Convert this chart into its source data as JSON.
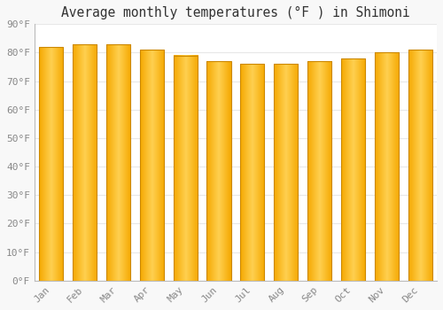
{
  "title": "Average monthly temperatures (°F ) in Shimoni",
  "months": [
    "Jan",
    "Feb",
    "Mar",
    "Apr",
    "May",
    "Jun",
    "Jul",
    "Aug",
    "Sep",
    "Oct",
    "Nov",
    "Dec"
  ],
  "values": [
    82,
    83,
    83,
    81,
    79,
    77,
    76,
    76,
    77,
    78,
    80,
    81
  ],
  "bar_color_left": "#F5A800",
  "bar_color_center": "#FFD050",
  "bar_color_right": "#F5A800",
  "bar_edge_color": "#CC8800",
  "background_color": "#F8F8F8",
  "plot_bg_color": "#FFFFFF",
  "grid_color": "#E8E8E8",
  "tick_label_color": "#888888",
  "title_color": "#333333",
  "ylim": [
    0,
    90
  ],
  "yticks": [
    0,
    10,
    20,
    30,
    40,
    50,
    60,
    70,
    80,
    90
  ],
  "ytick_labels": [
    "0°F",
    "10°F",
    "20°F",
    "30°F",
    "40°F",
    "50°F",
    "60°F",
    "70°F",
    "80°F",
    "90°F"
  ],
  "title_fontsize": 10.5,
  "tick_fontsize": 8
}
